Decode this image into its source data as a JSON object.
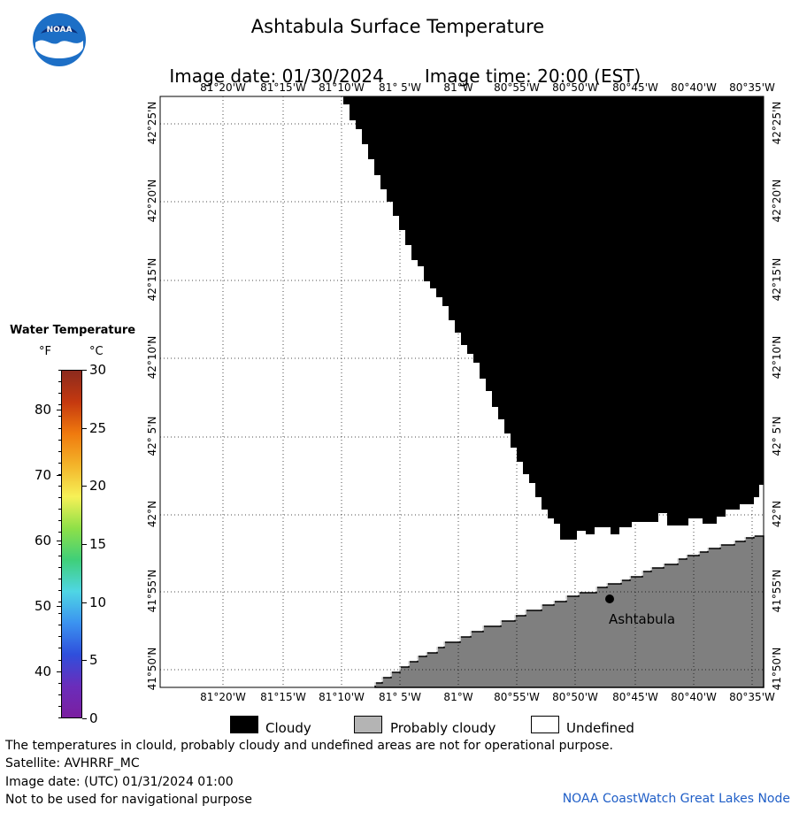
{
  "header": {
    "title": "Ashtabula Surface Temperature",
    "image_date_label": "Image date: 01/30/2024",
    "image_time_label": "Image time: 20:00 (EST)"
  },
  "logo": {
    "text": "NOAA",
    "colors": {
      "outer": "#1d6fc6",
      "inner": "#ffffff",
      "bird": "#0a2f7a"
    }
  },
  "map": {
    "longitude_ticks": [
      "81°20'W",
      "81°15'W",
      "81°10'W",
      "81° 5'W",
      "81°W",
      "80°55'W",
      "80°50'W",
      "80°45'W",
      "80°40'W",
      "80°35'W"
    ],
    "latitude_ticks": [
      "42°25'N",
      "42°20'N",
      "42°15'N",
      "42°10'N",
      "42° 5'N",
      "42°N",
      "41°55'N",
      "41°50'N"
    ],
    "city_label": "Ashtabula",
    "colors": {
      "cloudy": "#000000",
      "land": "#7f7f7f",
      "undefined": "#ffffff",
      "grid": "#000000"
    }
  },
  "temperature_scale": {
    "title": "Water Temperature",
    "unit_f": "°F",
    "unit_c": "°C",
    "fahrenheit_ticks": [
      "80",
      "70",
      "60",
      "50",
      "40"
    ],
    "celsius_ticks": [
      "30",
      "25",
      "20",
      "15",
      "10",
      "5",
      "0"
    ],
    "gradient_stops": [
      "#8c2a1e",
      "#c5390f",
      "#f07a0e",
      "#f3b42a",
      "#f6f157",
      "#8ee048",
      "#3fcf79",
      "#4fd6e4",
      "#3b93f0",
      "#2f4fdc",
      "#6a2dbb",
      "#7b1fa0"
    ]
  },
  "legend": {
    "items": [
      {
        "label": "Cloudy",
        "color": "#000000"
      },
      {
        "label": "Probably cloudy",
        "color": "#b4b4b4"
      },
      {
        "label": "Undefined",
        "color": "#ffffff"
      }
    ]
  },
  "footer": {
    "note": "The temperatures in clould, probably cloudy and undefined areas are not for operational purpose.",
    "satellite": "Satellite: AVHRRF_MC",
    "utc_date": "Image date: (UTC) 01/31/2024  01:00",
    "nav_warning": "Not to be used for navigational purpose",
    "credit": "NOAA CoastWatch Great Lakes Node"
  }
}
